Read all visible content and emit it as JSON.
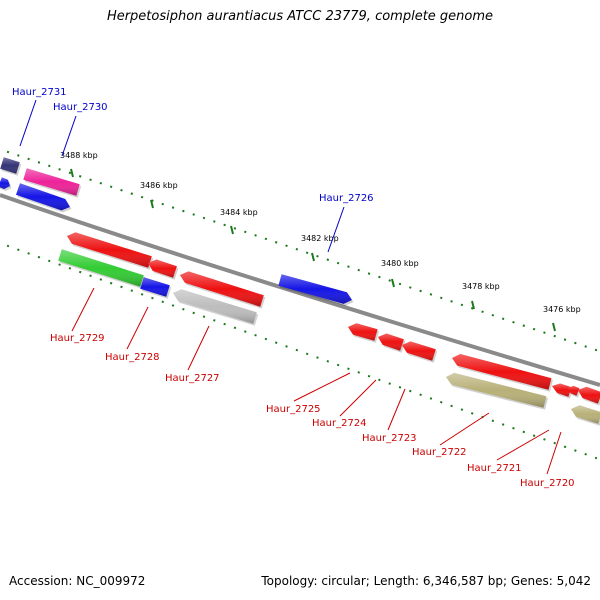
{
  "title": "Herpetosiphon aurantiacus ATCC 23779, complete genome",
  "footer": {
    "accession": "Accession: NC_009972",
    "summary": "Topology: circular; Length: 6,346,587 bp; Genes: 5,042"
  },
  "colors": {
    "backbone": "#8a8a8a",
    "tick": "#1c7a1c",
    "label_forward": "#0000cc",
    "label_reverse": "#cc0000",
    "red": "#ee1111",
    "blue": "#1515e6",
    "green": "#33cc33",
    "pink": "#ee2299",
    "navy": "#333377",
    "gray": "#bdbdbd",
    "olive": "#b8b078"
  },
  "ticks": [
    "3488 kbp",
    "3486 kbp",
    "3484 kbp",
    "3482 kbp",
    "3480 kbp",
    "3478 kbp",
    "3476 kbp"
  ],
  "genes_forward": [
    "Haur_2731",
    "Haur_2730",
    "Haur_2726"
  ],
  "genes_reverse": [
    "Haur_2729",
    "Haur_2728",
    "Haur_2727",
    "Haur_2725",
    "Haur_2724",
    "Haur_2723",
    "Haur_2722",
    "Haur_2721",
    "Haur_2720"
  ]
}
